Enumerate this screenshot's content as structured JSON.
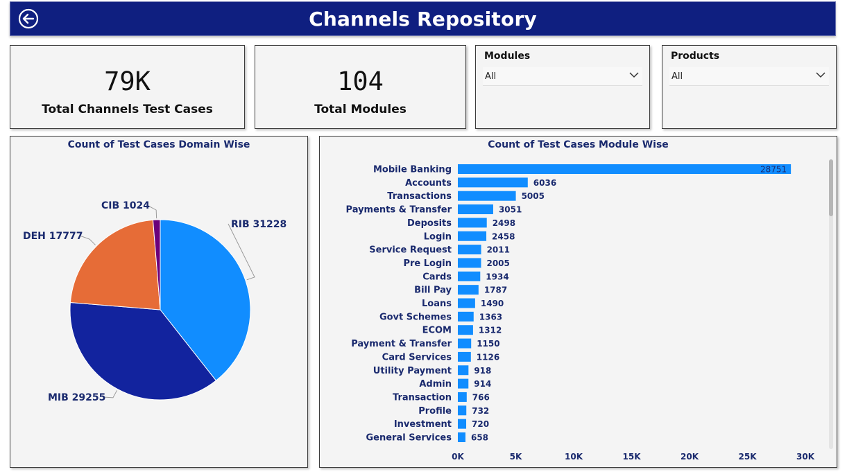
{
  "header": {
    "title": "Channels Repository",
    "back_icon": "back-arrow-icon"
  },
  "kpis": [
    {
      "value": "79K",
      "label": "Total Channels Test Cases"
    },
    {
      "value": "104",
      "label": "Total Modules"
    }
  ],
  "slicers": [
    {
      "title": "Modules",
      "selected": "All"
    },
    {
      "title": "Products",
      "selected": "All"
    }
  ],
  "colors": {
    "header_bg": "#0f1f80",
    "bar": "#118dff",
    "pie": [
      "#118dff",
      "#12239e",
      "#e66c37",
      "#6b007b"
    ]
  },
  "chart_data": [
    {
      "type": "pie",
      "title": "Count of Test Cases Domain Wise",
      "slices": [
        {
          "name": "RIB",
          "value": 31228
        },
        {
          "name": "MIB",
          "value": 29255
        },
        {
          "name": "DEH",
          "value": 17777
        },
        {
          "name": "CIB",
          "value": 1024
        }
      ]
    },
    {
      "type": "bar",
      "orientation": "horizontal",
      "title": "Count of Test Cases Module Wise",
      "categories": [
        "Mobile Banking",
        "Accounts",
        "Transactions",
        "Payments & Transfer",
        "Deposits",
        "Login",
        "Service Request",
        "Pre Login",
        "Cards",
        "Bill Pay",
        "Loans",
        "Govt Schemes",
        "ECOM",
        "Payment & Transfer",
        "Card Services",
        "Utility Payment",
        "Admin",
        "Transaction",
        "Profile",
        "Investment",
        "General Services"
      ],
      "values": [
        28751,
        6036,
        5005,
        3051,
        2498,
        2458,
        2011,
        2005,
        1934,
        1787,
        1490,
        1363,
        1312,
        1150,
        1126,
        918,
        914,
        766,
        732,
        720,
        658
      ],
      "xlim": [
        0,
        30000
      ],
      "xticks": [
        "0K",
        "5K",
        "10K",
        "15K",
        "20K",
        "25K",
        "30K"
      ],
      "grid": false
    }
  ]
}
